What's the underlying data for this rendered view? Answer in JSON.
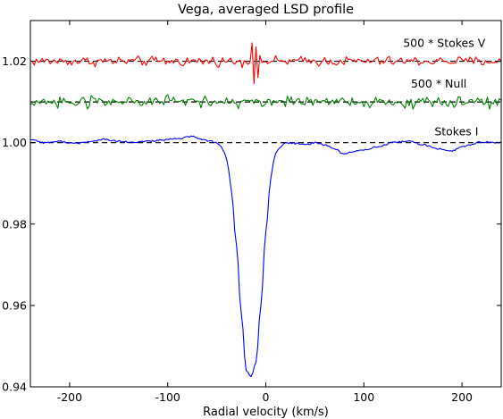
{
  "chart_data": {
    "type": "line",
    "title": "Vega, averaged LSD profile",
    "xlabel": "Radial velocity (km/s)",
    "ylabel": "",
    "xlim": [
      -240,
      240
    ],
    "ylim": [
      0.94,
      1.03
    ],
    "x_ticks": [
      -200,
      -100,
      0,
      100,
      200
    ],
    "y_ticks": [
      0.94,
      0.96,
      0.98,
      1.0,
      1.02
    ],
    "x_tick_labels": [
      "-200",
      "-100",
      "0",
      "100",
      "200"
    ],
    "y_tick_labels": [
      "0.94",
      "0.96",
      "0.98",
      "1.00",
      "1.02"
    ],
    "reference_lines": [
      {
        "y": 1.02,
        "style": "dashed",
        "color": "#000000"
      },
      {
        "y": 1.01,
        "style": "dashed",
        "color": "#000000"
      },
      {
        "y": 1.0,
        "style": "dashed",
        "color": "#000000"
      }
    ],
    "series": [
      {
        "name": "500 * Stokes V",
        "color": "#ff0000",
        "baseline": 1.02,
        "noise_amplitude": 0.0009,
        "feature": {
          "x": -15,
          "values": [
            1.0245,
            1.0145,
            1.0235,
            1.016
          ]
        }
      },
      {
        "name": "500 * Null",
        "color": "#007f00",
        "baseline": 1.01,
        "noise_amplitude": 0.0011
      },
      {
        "name": "Stokes I",
        "color": "#0000ff",
        "x": [
          -240,
          -225,
          -210,
          -195,
          -180,
          -165,
          -150,
          -135,
          -120,
          -105,
          -90,
          -75,
          -65,
          -55,
          -50,
          -45,
          -42,
          -40,
          -38,
          -35,
          -30,
          -25,
          -20,
          -15,
          -10,
          -5,
          0,
          5,
          8,
          10,
          12,
          15,
          18,
          20,
          25,
          30,
          40,
          50,
          60,
          70,
          80,
          90,
          100,
          115,
          130,
          145,
          160,
          175,
          190,
          200,
          210,
          220,
          230,
          240
        ],
        "y": [
          1.0008,
          1.0,
          1.0003,
          0.9998,
          1.0002,
          1.0008,
          1.0003,
          1.0,
          1.0004,
          1.0006,
          1.001,
          1.0015,
          1.0008,
          1.0003,
          0.9998,
          0.999,
          0.9975,
          0.996,
          0.9935,
          0.988,
          0.975,
          0.958,
          0.944,
          0.9425,
          0.946,
          0.96,
          0.978,
          0.991,
          0.9955,
          0.9972,
          0.9982,
          0.999,
          0.9995,
          0.9998,
          1.0,
          0.9998,
          0.9995,
          1.0,
          0.9995,
          0.9985,
          0.9972,
          0.9978,
          0.9983,
          0.999,
          1.0,
          1.0004,
          0.9995,
          0.9985,
          0.998,
          0.999,
          0.9995,
          1.0002,
          1.0,
          1.0
        ]
      }
    ],
    "annotations": [
      {
        "text": "500 * Stokes V",
        "x": 140,
        "y": 1.0235
      },
      {
        "text": "500 * Null",
        "x": 148,
        "y": 1.0135
      },
      {
        "text": "Stokes I",
        "x": 172,
        "y": 1.0018
      }
    ],
    "grid": false,
    "legend": "none"
  }
}
